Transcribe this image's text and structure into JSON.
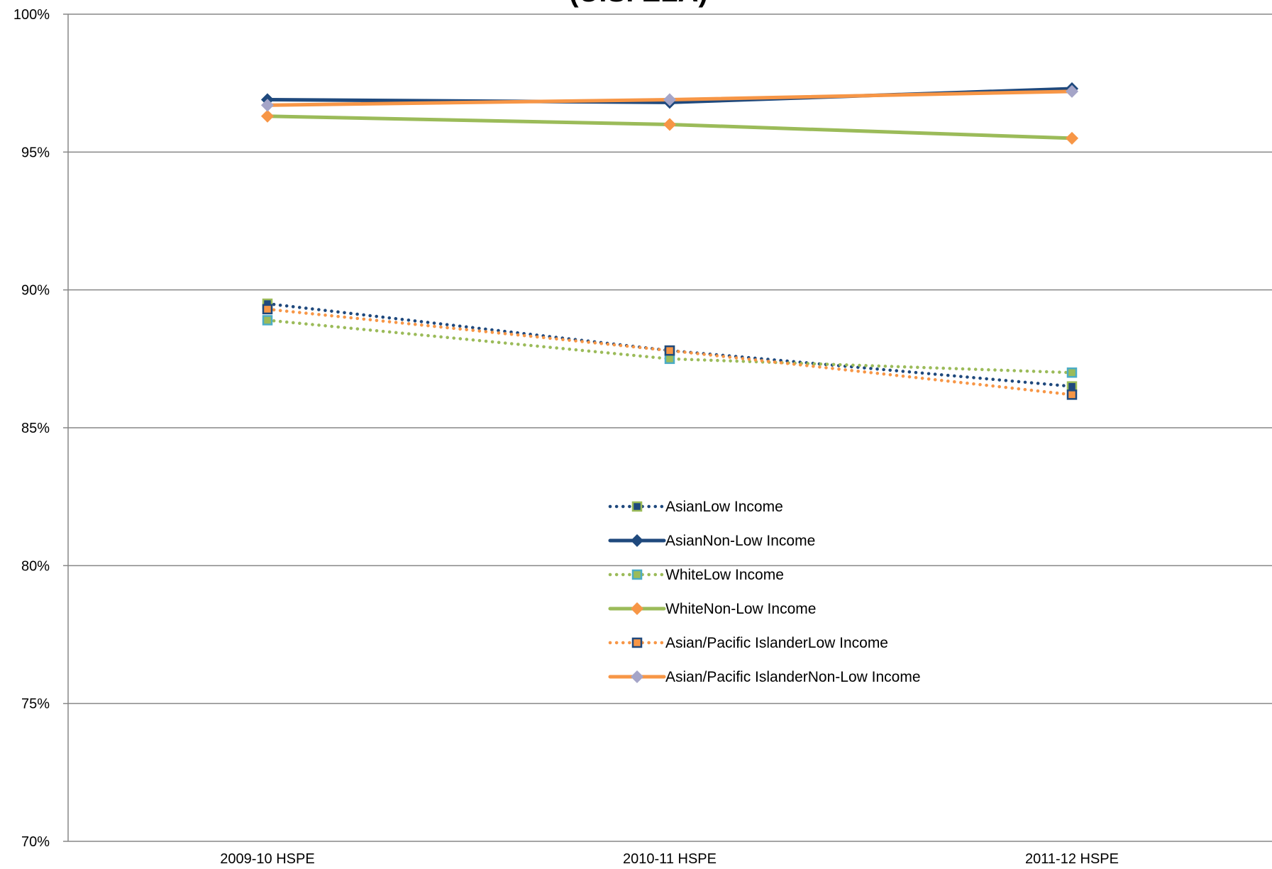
{
  "chart_data": {
    "type": "line",
    "title": "(U.S. ELA)",
    "xlabel": "",
    "ylabel": "",
    "categories": [
      "2009-10 HSPE",
      "2010-11 HSPE",
      "2011-12 HSPE"
    ],
    "ylim": [
      0.7,
      1.0
    ],
    "yticks": [
      {
        "value": 1.0,
        "label": "100%"
      },
      {
        "value": 0.95,
        "label": "95%"
      },
      {
        "value": 0.9,
        "label": "90%"
      },
      {
        "value": 0.85,
        "label": "85%"
      },
      {
        "value": 0.8,
        "label": "80%"
      },
      {
        "value": 0.75,
        "label": "75%"
      },
      {
        "value": 0.7,
        "label": "70%"
      }
    ],
    "grid": "horizontal",
    "legend_position": "center",
    "series": [
      {
        "name": "AsianLow Income",
        "values": [
          0.895,
          0.878,
          0.865
        ],
        "color": "#1F497D",
        "line_style": "dotted",
        "marker": "square",
        "marker_fill": "#1F497D",
        "marker_edge": "#9BBB59"
      },
      {
        "name": "AsianNon-Low Income",
        "values": [
          0.969,
          0.968,
          0.973
        ],
        "color": "#1F497D",
        "line_style": "solid",
        "marker": "diamond",
        "marker_fill": "#1F497D",
        "marker_edge": "#1F497D"
      },
      {
        "name": "WhiteLow Income",
        "values": [
          0.889,
          0.875,
          0.87
        ],
        "color": "#9BBB59",
        "line_style": "dotted",
        "marker": "square",
        "marker_fill": "#9BBB59",
        "marker_edge": "#4BACC6"
      },
      {
        "name": "WhiteNon-Low Income",
        "values": [
          0.963,
          0.96,
          0.955
        ],
        "color": "#9BBB59",
        "line_style": "solid",
        "marker": "diamond",
        "marker_fill": "#F79646",
        "marker_edge": "#F79646"
      },
      {
        "name": "Asian/Pacific IslanderLow Income",
        "values": [
          0.893,
          0.878,
          0.862
        ],
        "color": "#F79646",
        "line_style": "dotted",
        "marker": "square",
        "marker_fill": "#F79646",
        "marker_edge": "#1F497D"
      },
      {
        "name": "Asian/Pacific IslanderNon-Low Income",
        "values": [
          0.967,
          0.969,
          0.972
        ],
        "color": "#F79646",
        "line_style": "solid",
        "marker": "diamond",
        "marker_fill": "#A5A5C8",
        "marker_edge": "#A5A5C8"
      }
    ]
  }
}
